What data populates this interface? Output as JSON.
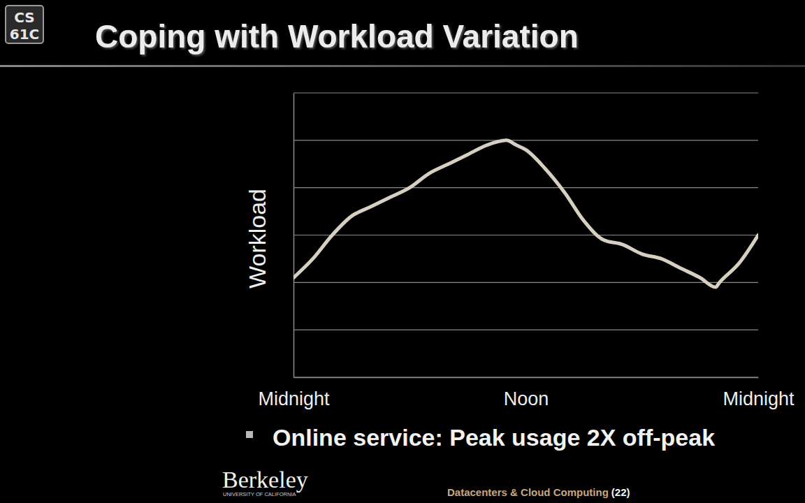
{
  "chart_data": {
    "type": "line",
    "y_label": "Workload",
    "x": [
      0,
      1,
      2,
      3,
      4,
      5,
      6,
      7,
      8,
      9,
      10,
      11,
      11.5,
      12,
      13,
      14,
      15,
      16,
      17,
      18,
      19,
      20,
      21,
      21.8,
      22,
      23,
      24
    ],
    "values": [
      2.1,
      2.5,
      3.0,
      3.4,
      3.6,
      3.8,
      4.0,
      4.3,
      4.5,
      4.7,
      4.9,
      5.0,
      4.9,
      4.8,
      4.4,
      3.9,
      3.3,
      2.9,
      2.8,
      2.6,
      2.5,
      2.3,
      2.1,
      1.9,
      2.0,
      2.4,
      3.0
    ],
    "color": "#d8cfc3",
    "xlim": [
      0,
      24
    ],
    "xticks": [
      {
        "value": 0,
        "label": "Midnight"
      },
      {
        "value": 12,
        "label": "Noon"
      },
      {
        "value": 24,
        "label": "Midnight"
      }
    ],
    "ylim": [
      0,
      6
    ],
    "yticks": [
      0,
      1,
      2,
      3,
      4,
      5,
      6
    ],
    "grid": true,
    "tick_labels": "x"
  },
  "slide": {
    "logo": [
      "CS",
      "61C"
    ],
    "title": "Coping with Workload Variation",
    "bullet": "Online service: Peak usage 2X off-peak",
    "brand": "Berkeley",
    "brand_sub": "UNIVERSITY OF CALIFORNIA",
    "footer": "Datacenters & Cloud Computing",
    "page": "(22)"
  }
}
